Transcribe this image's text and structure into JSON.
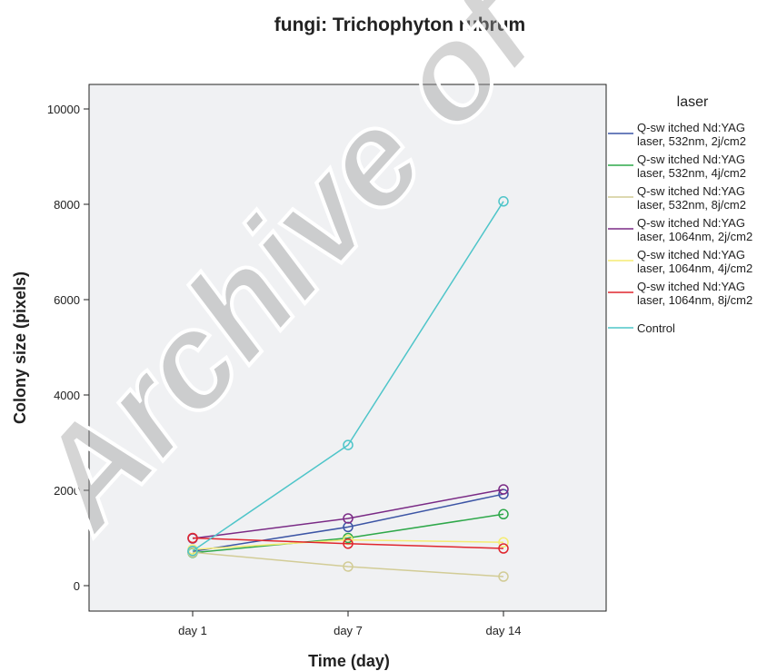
{
  "chart_data": {
    "type": "line",
    "title": "fungi: Trichophyton rubrum",
    "xlabel": "Time (day)",
    "ylabel": "Colony size (pixels)",
    "categories": [
      "day 1",
      "day 7",
      "day 14"
    ],
    "ylim": [
      -500,
      10500
    ],
    "yticks": [
      0,
      2000,
      4000,
      6000,
      8000,
      10000
    ],
    "grid": false,
    "plot_background": "#f0f1f3",
    "legend": {
      "title": "laser",
      "placement": "right"
    },
    "series": [
      {
        "name": "Q-sw itched Nd:YAG laser, 532nm, 2j/cm2",
        "label_lines": [
          "Q-sw itched Nd:YAG",
          "laser, 532nm, 2j/cm2"
        ],
        "color": "#3c55a5",
        "values": [
          720,
          1230,
          1920
        ]
      },
      {
        "name": "Q-sw itched Nd:YAG laser, 532nm, 4j/cm2",
        "label_lines": [
          "Q-sw itched Nd:YAG",
          "laser, 532nm, 4j/cm2"
        ],
        "color": "#2ea84a",
        "values": [
          690,
          1000,
          1500
        ]
      },
      {
        "name": "Q-sw itched Nd:YAG laser, 532nm, 8j/cm2",
        "label_lines": [
          "Q-sw itched Nd:YAG",
          "laser, 532nm, 8j/cm2"
        ],
        "color": "#d2cc96",
        "values": [
          700,
          400,
          190
        ]
      },
      {
        "name": "Q-sw itched Nd:YAG laser, 1064nm, 2j/cm2",
        "label_lines": [
          "Q-sw itched Nd:YAG",
          "laser, 1064nm, 2j/cm2"
        ],
        "color": "#7a2a85",
        "values": [
          990,
          1410,
          2020
        ]
      },
      {
        "name": "Q-sw itched Nd:YAG laser, 1064nm, 4j/cm2",
        "label_lines": [
          "Q-sw itched Nd:YAG",
          "laser, 1064nm, 4j/cm2"
        ],
        "color": "#f5ec72",
        "values": [
          760,
          960,
          910
        ]
      },
      {
        "name": "Q-sw itched Nd:YAG laser, 1064nm, 8j/cm2",
        "label_lines": [
          "Q-sw itched Nd:YAG",
          "laser, 1064nm, 8j/cm2"
        ],
        "color": "#e0262e",
        "values": [
          1000,
          880,
          780
        ]
      },
      {
        "name": "Control",
        "label_lines": [
          "Control"
        ],
        "color": "#4ec5c9",
        "values": [
          730,
          2950,
          8060
        ]
      }
    ]
  },
  "watermark": {
    "text": "Archive of",
    "color": "#9a9a9a"
  }
}
